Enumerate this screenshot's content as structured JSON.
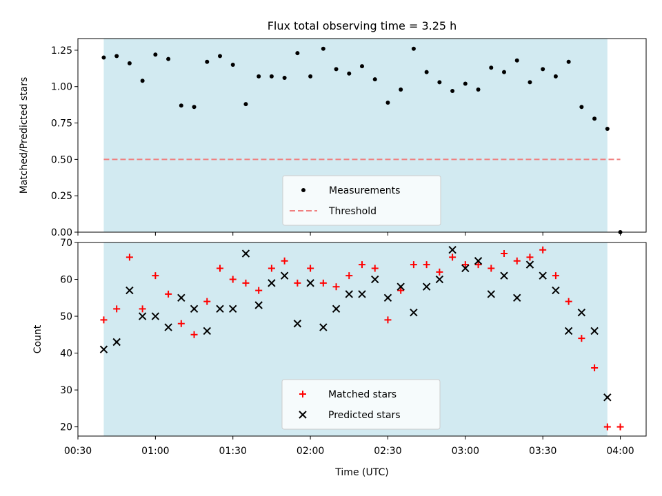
{
  "figure": {
    "title": "Flux total observing time = 3.25 h"
  },
  "chart_data": [
    {
      "type": "scatter",
      "panel": "top",
      "ylabel": "Matched/Predicted stars",
      "xlabel": "",
      "ylim": [
        0,
        1.33
      ],
      "xlim_minutes": [
        30,
        250
      ],
      "yticks": [
        "0.00",
        "0.25",
        "0.50",
        "0.75",
        "1.00",
        "1.25"
      ],
      "ytick_values": [
        0,
        0.25,
        0.5,
        0.75,
        1.0,
        1.25
      ],
      "shaded_span": [
        "00:40",
        "03:55"
      ],
      "shade_color": "#add8e6",
      "grid": false,
      "legend_position": "lower-center",
      "threshold": {
        "name": "Threshold",
        "value": 0.5,
        "x_range": [
          "00:40",
          "04:00"
        ],
        "color": "#f08080",
        "style": "dashed"
      },
      "series": [
        {
          "name": "Measurements",
          "marker": "dot",
          "color": "#000000",
          "x": [
            "00:40",
            "00:45",
            "00:50",
            "00:55",
            "01:00",
            "01:05",
            "01:10",
            "01:15",
            "01:20",
            "01:25",
            "01:30",
            "01:35",
            "01:40",
            "01:45",
            "01:50",
            "01:55",
            "02:00",
            "02:05",
            "02:10",
            "02:15",
            "02:20",
            "02:25",
            "02:30",
            "02:35",
            "02:40",
            "02:45",
            "02:50",
            "02:55",
            "03:00",
            "03:05",
            "03:10",
            "03:15",
            "03:20",
            "03:25",
            "03:30",
            "03:35",
            "03:40",
            "03:45",
            "03:50",
            "03:55",
            "04:00"
          ],
          "y": [
            1.2,
            1.21,
            1.16,
            1.04,
            1.22,
            1.19,
            0.87,
            0.86,
            1.17,
            1.21,
            1.15,
            0.88,
            1.07,
            1.07,
            1.06,
            1.23,
            1.07,
            1.26,
            1.12,
            1.09,
            1.14,
            1.05,
            0.89,
            0.98,
            1.26,
            1.1,
            1.03,
            0.97,
            1.02,
            0.98,
            1.13,
            1.1,
            1.18,
            1.03,
            1.12,
            1.07,
            1.17,
            0.86,
            0.78,
            0.71,
            0.0
          ]
        }
      ]
    },
    {
      "type": "scatter",
      "panel": "bottom",
      "ylabel": "Count",
      "xlabel": "Time (UTC)",
      "ylim": [
        17.5,
        70
      ],
      "xlim_minutes": [
        30,
        250
      ],
      "yticks": [
        "20",
        "30",
        "40",
        "50",
        "60",
        "70"
      ],
      "ytick_values": [
        20,
        30,
        40,
        50,
        60,
        70
      ],
      "xticks": [
        "00:30",
        "01:00",
        "01:30",
        "02:00",
        "02:30",
        "03:00",
        "03:30",
        "04:00"
      ],
      "shaded_span": [
        "00:40",
        "03:55"
      ],
      "shade_color": "#add8e6",
      "grid": false,
      "legend_position": "lower-center",
      "series": [
        {
          "name": "Matched stars",
          "marker": "plus",
          "color": "#ff0000",
          "x": [
            "00:40",
            "00:45",
            "00:50",
            "00:55",
            "01:00",
            "01:05",
            "01:10",
            "01:15",
            "01:20",
            "01:25",
            "01:30",
            "01:35",
            "01:40",
            "01:45",
            "01:50",
            "01:55",
            "02:00",
            "02:05",
            "02:10",
            "02:15",
            "02:20",
            "02:25",
            "02:30",
            "02:35",
            "02:40",
            "02:45",
            "02:50",
            "02:55",
            "03:00",
            "03:05",
            "03:10",
            "03:15",
            "03:20",
            "03:25",
            "03:30",
            "03:35",
            "03:40",
            "03:45",
            "03:50",
            "03:55",
            "04:00"
          ],
          "y": [
            49,
            52,
            66,
            52,
            61,
            56,
            48,
            45,
            54,
            63,
            60,
            59,
            57,
            63,
            65,
            59,
            63,
            59,
            58,
            61,
            64,
            63,
            49,
            57,
            64,
            64,
            62,
            66,
            64,
            64,
            63,
            67,
            65,
            66,
            68,
            61,
            54,
            44,
            36,
            20,
            20
          ]
        },
        {
          "name": "Predicted stars",
          "marker": "x",
          "color": "#000000",
          "x": [
            "00:40",
            "00:45",
            "00:50",
            "00:55",
            "01:00",
            "01:05",
            "01:10",
            "01:15",
            "01:20",
            "01:25",
            "01:30",
            "01:35",
            "01:40",
            "01:45",
            "01:50",
            "01:55",
            "02:00",
            "02:05",
            "02:10",
            "02:15",
            "02:20",
            "02:25",
            "02:30",
            "02:35",
            "02:40",
            "02:45",
            "02:50",
            "02:55",
            "03:00",
            "03:05",
            "03:10",
            "03:15",
            "03:20",
            "03:25",
            "03:30",
            "03:35",
            "03:40",
            "03:45",
            "03:50",
            "03:55"
          ],
          "y": [
            41,
            43,
            57,
            50,
            50,
            47,
            55,
            52,
            46,
            52,
            52,
            67,
            53,
            59,
            61,
            48,
            59,
            47,
            52,
            56,
            56,
            60,
            55,
            58,
            51,
            58,
            60,
            68,
            63,
            65,
            56,
            61,
            55,
            64,
            61,
            57,
            46,
            51,
            46,
            28
          ]
        }
      ]
    }
  ]
}
